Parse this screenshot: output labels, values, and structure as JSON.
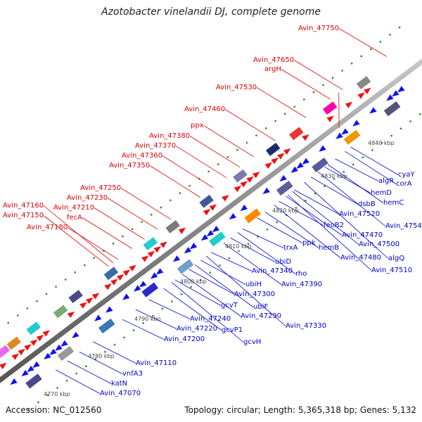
{
  "title": "Azotobacter vinelandii DJ, complete genome",
  "footer": {
    "accession": "Accession: NC_012560",
    "summary": "Topology: circular; Length: 5,365,318 bp; Genes: 5,132"
  },
  "colors": {
    "top_strand_label": "#dd0000",
    "bottom_strand_label": "#0000cc",
    "axis": "#9a9a9a",
    "tick_dots": "#228822"
  },
  "ticks": [
    "4770 kbp",
    "4780 kbp",
    "4790 kbp",
    "4800 kbp",
    "4810 kbp",
    "4820 kbp",
    "4830 kbp",
    "4840 kbp"
  ],
  "top_labels": [
    "Avin_47750",
    "Avin_47650",
    "argH",
    "Avin_47530",
    "Avin_47460",
    "ppx",
    "Avin_47380",
    "Avin_47370",
    "Avin_47360",
    "Avin_47350",
    "Avin_47250",
    "Avin_47230",
    "Avin_47210",
    "fecA",
    "Avin_47160",
    "Avin_47150",
    "Avin_47180"
  ],
  "bottom_labels": [
    "cyaY",
    "corA",
    "algR",
    "hemD",
    "hemC",
    "dsbB",
    "Avin_47520",
    "Avin_47540",
    "feoB2",
    "Avin_47470",
    "Avin_47500",
    "ppk",
    "hemB",
    "Avin_47480",
    "algQ",
    "Avin_47510",
    "trxA",
    "ubiD",
    "rho",
    "Avin_47340",
    "Avin_47390",
    "ubiH",
    "Avin_47300",
    "ubiF",
    "gcvT",
    "Avin_47290",
    "Avin_47240",
    "Avin_47330",
    "Avin_47220",
    "gcvP1",
    "Avin_47200",
    "gcvH",
    "Avin_47110",
    "vnfA3",
    "katN",
    "Avin_47070"
  ]
}
